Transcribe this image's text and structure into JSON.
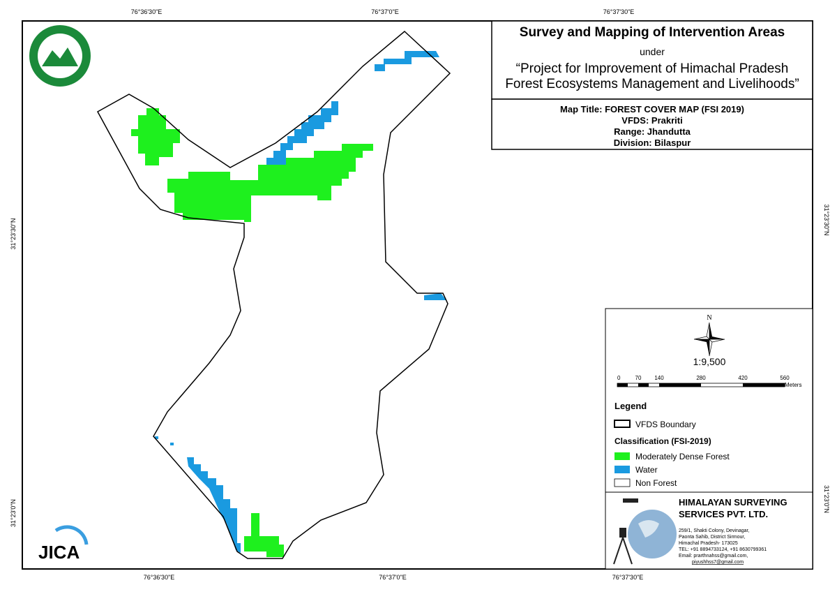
{
  "coordinates": {
    "top": [
      "76°36'30\"E",
      "76°37'0\"E",
      "76°37'30\"E"
    ],
    "bottom": [
      "76°36'30\"E",
      "76°37'0\"E",
      "76°37'30\"E"
    ],
    "left": [
      "31°23'30\"N",
      "31°23'0\"N"
    ],
    "right": [
      "31°23'30\"N",
      "31°23'0\"N"
    ]
  },
  "logos": {
    "jica": "JICA"
  },
  "header": {
    "title": "Survey and Mapping of Intervention Areas",
    "under": "under",
    "project": [
      "“Project for Improvement of Himachal Pradesh",
      "Forest Ecosystems Management and Livelihoods”"
    ]
  },
  "info": [
    "Map Title: FOREST COVER MAP (FSI 2019)",
    "VFDS: Prakriti",
    "Range: Jhandutta",
    "Division: Bilaspur"
  ],
  "legend": {
    "north": "N",
    "scale": "1:9,500",
    "scale_ticks": [
      0,
      70,
      140,
      280,
      420,
      560
    ],
    "scale_unit": "Meters",
    "title": "Legend",
    "boundary": "VFDS Boundary",
    "classification": "Classification (FSI-2019)",
    "items": [
      "Moderately Dense Forest",
      "Water",
      "Non Forest"
    ]
  },
  "company": {
    "name": [
      "HIMALAYAN SURVEYING",
      "SERVICES PVT. LTD."
    ],
    "address": [
      "259/1, Shakti Colony, Devinagar,",
      "Paonta Sahib, District Sirmour,",
      "Himachal Pradesh- 173025",
      "TEL: +91 8894733124, +91 8630799361",
      "Email: prarthnahss@gmail.com,",
      "piyushhss7@gmail.com"
    ]
  }
}
